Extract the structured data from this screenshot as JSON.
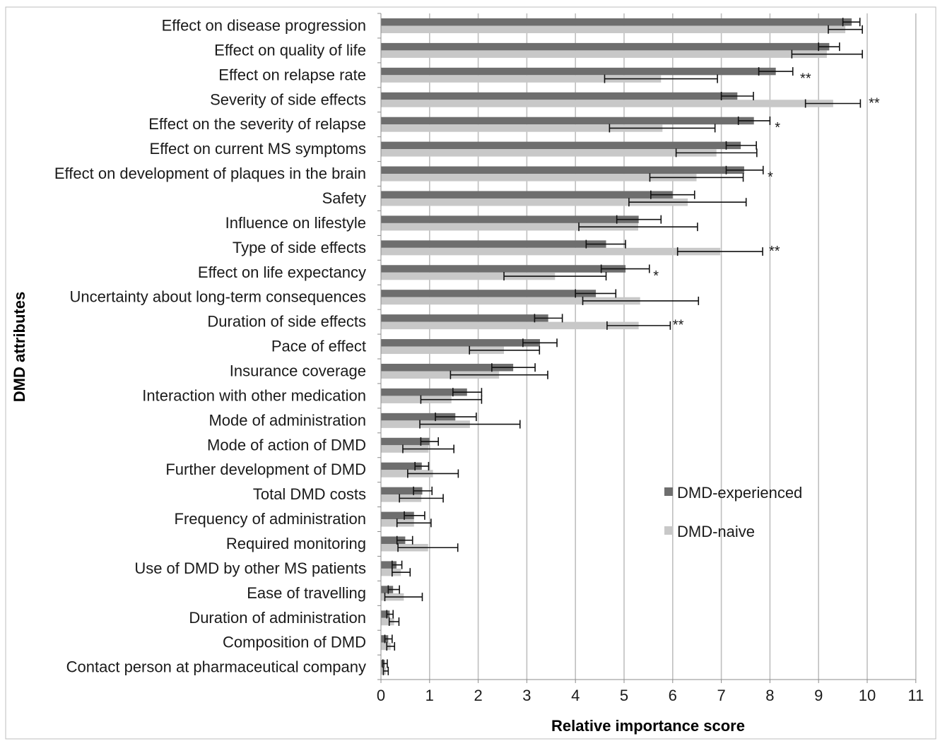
{
  "chart_data": {
    "type": "bar",
    "orientation": "horizontal",
    "xlabel": "Relative importance score",
    "ylabel": "DMD attributes",
    "xlim": [
      0,
      11
    ],
    "xticks": [
      0,
      1,
      2,
      3,
      4,
      5,
      6,
      7,
      8,
      9,
      10,
      11
    ],
    "grid": true,
    "legend": "right",
    "categories": [
      "Effect on disease progression",
      "Effect on quality of life",
      "Effect on relapse rate",
      "Severity of side effects",
      "Effect on the severity of relapse",
      "Effect on current MS symptoms",
      "Effect on development of plaques in the brain",
      "Safety",
      "Influence on lifestyle",
      "Type of side effects",
      "Effect on life expectancy",
      "Uncertainty about long-term consequences",
      "Duration of side effects",
      "Pace of effect",
      "Insurance coverage",
      "Interaction with other medication",
      "Mode of administration",
      "Mode of action of DMD",
      "Further development of DMD",
      "Total DMD costs",
      "Frequency of administration",
      "Required monitoring",
      "Use of DMD by other MS patients",
      "Ease of travelling",
      "Duration of administration",
      "Composition of DMD",
      "Contact person at pharmaceutical company"
    ],
    "series": [
      {
        "name": "DMD-experienced",
        "color": "#6e6e6e",
        "values": [
          9.68,
          9.22,
          8.12,
          7.33,
          7.67,
          7.4,
          7.47,
          6.0,
          5.3,
          4.63,
          5.03,
          4.42,
          3.44,
          3.27,
          2.72,
          1.77,
          1.53,
          1.0,
          0.84,
          0.85,
          0.68,
          0.5,
          0.32,
          0.25,
          0.18,
          0.15,
          0.08
        ],
        "err_low": [
          9.5,
          9.0,
          7.77,
          7.0,
          7.35,
          7.1,
          7.1,
          5.55,
          4.85,
          4.22,
          4.53,
          4.0,
          3.16,
          2.92,
          2.28,
          1.48,
          1.12,
          0.82,
          0.7,
          0.67,
          0.48,
          0.33,
          0.23,
          0.15,
          0.12,
          0.08,
          0.04
        ],
        "err_high": [
          9.85,
          9.43,
          8.47,
          7.66,
          8.0,
          7.72,
          7.86,
          6.45,
          5.76,
          5.03,
          5.52,
          4.83,
          3.73,
          3.62,
          3.17,
          2.07,
          1.96,
          1.18,
          0.98,
          1.05,
          0.9,
          0.65,
          0.43,
          0.38,
          0.25,
          0.23,
          0.13
        ]
      },
      {
        "name": "DMD-naive",
        "color": "#c8c8c8",
        "values": [
          9.55,
          9.17,
          5.76,
          9.3,
          5.79,
          6.9,
          6.49,
          6.31,
          5.29,
          6.98,
          3.58,
          5.33,
          5.3,
          2.53,
          2.43,
          1.45,
          1.83,
          0.98,
          1.07,
          0.83,
          0.68,
          0.97,
          0.41,
          0.47,
          0.27,
          0.2,
          0.1
        ],
        "err_low": [
          9.2,
          8.45,
          4.6,
          8.73,
          4.7,
          6.07,
          5.53,
          5.1,
          4.07,
          6.1,
          2.53,
          4.15,
          4.65,
          1.82,
          1.43,
          0.82,
          0.8,
          0.45,
          0.55,
          0.38,
          0.33,
          0.35,
          0.23,
          0.08,
          0.17,
          0.12,
          0.05
        ],
        "err_high": [
          9.9,
          9.9,
          6.92,
          9.86,
          6.87,
          7.73,
          7.45,
          7.51,
          6.51,
          7.85,
          4.63,
          6.53,
          5.95,
          3.26,
          3.43,
          2.07,
          2.86,
          1.5,
          1.59,
          1.28,
          1.03,
          1.58,
          0.6,
          0.85,
          0.37,
          0.28,
          0.15
        ]
      }
    ],
    "annotations": [
      {
        "category_index": 2,
        "text": "**",
        "x": 8.62
      },
      {
        "category_index": 3,
        "text": "**",
        "x": 10.03
      },
      {
        "category_index": 4,
        "text": "*",
        "x": 8.1
      },
      {
        "category_index": 6,
        "text": "*",
        "x": 7.95
      },
      {
        "category_index": 9,
        "text": "**",
        "x": 7.98
      },
      {
        "category_index": 10,
        "text": "*",
        "x": 5.6
      },
      {
        "category_index": 12,
        "text": "**",
        "x": 6.0
      }
    ]
  }
}
